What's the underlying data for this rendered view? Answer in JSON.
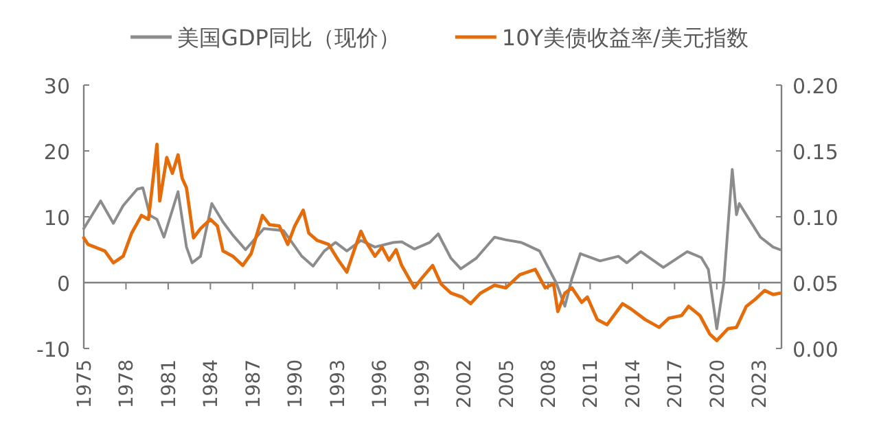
{
  "chart_data": {
    "type": "line",
    "legend": "top",
    "xlim": [
      1975,
      2024.6
    ],
    "xticks": [
      1975,
      1978,
      1981,
      1984,
      1987,
      1990,
      1993,
      1996,
      1999,
      2002,
      2005,
      2008,
      2011,
      2014,
      2017,
      2020,
      2023
    ],
    "ylim": [
      -10,
      30
    ],
    "yticks": [
      -10,
      0,
      10,
      20,
      30
    ],
    "y2lim": [
      0,
      0.2
    ],
    "y2ticks": [
      {
        "value": 0,
        "label": "0.00"
      },
      {
        "value": 0.05,
        "label": "0.05"
      },
      {
        "value": 0.1,
        "label": "0.10"
      },
      {
        "value": 0.15,
        "label": "0.15"
      },
      {
        "value": 0.2,
        "label": "0.20"
      }
    ],
    "series": [
      {
        "name": "美国GDP同比（现价）",
        "color": "#8c8c8c",
        "x": [
          1975.0,
          1976.2,
          1977.1,
          1977.8,
          1978.8,
          1979.2,
          1979.7,
          1980.2,
          1980.7,
          1981.7,
          1982.3,
          1982.7,
          1983.3,
          1984.1,
          1984.9,
          1985.6,
          1986.5,
          1987.8,
          1989.2,
          1990.5,
          1991.3,
          1992.1,
          1992.9,
          1993.7,
          1994.7,
          1995.7,
          1997.0,
          1997.6,
          1998.5,
          1999.6,
          2000.2,
          2001.1,
          2001.8,
          2002.9,
          2004.2,
          2005.0,
          2006.1,
          2007.4,
          2008.6,
          2009.2,
          2009.7,
          2010.3,
          2011.7,
          2013.0,
          2013.6,
          2014.6,
          2016.2,
          2017.9,
          2018.9,
          2019.4,
          2020.0,
          2020.5,
          2021.1,
          2021.4,
          2021.6,
          2022.1,
          2023.1,
          2024.0,
          2024.5
        ],
        "values": [
          8.2,
          12.4,
          9,
          11.7,
          14.2,
          14.4,
          10.2,
          9.6,
          6.9,
          13.8,
          5.4,
          3,
          4,
          12,
          9.2,
          7.2,
          5,
          8.2,
          7.9,
          4,
          2.5,
          4.8,
          6.1,
          4.8,
          6.4,
          5.4,
          6.1,
          6.2,
          5.1,
          6.1,
          7.4,
          3.7,
          2.1,
          3.7,
          6.9,
          6.5,
          6.1,
          4.8,
          -0.1,
          -3.6,
          0.6,
          4.4,
          3.3,
          4,
          3,
          4.7,
          2.3,
          4.7,
          3.8,
          2,
          -7,
          0,
          17.2,
          10.3,
          12,
          10.3,
          6.9,
          5.4,
          5
        ]
      },
      {
        "name": "10Y美债收益率/美元指数",
        "color": "#e46c0a",
        "axis": "y2",
        "x": [
          1975.0,
          1975.3,
          1976.5,
          1977.1,
          1977.8,
          1978.4,
          1979.1,
          1979.6,
          1979.9,
          1980.2,
          1980.4,
          1980.9,
          1981.3,
          1981.7,
          1982.0,
          1982.3,
          1982.8,
          1983.3,
          1984.0,
          1984.5,
          1984.9,
          1985.6,
          1986.3,
          1986.9,
          1987.7,
          1988.2,
          1988.9,
          1989.5,
          1990.0,
          1990.6,
          1991.0,
          1991.6,
          1992.4,
          1993.1,
          1993.7,
          1994.2,
          1994.7,
          1995.0,
          1995.7,
          1996.2,
          1996.7,
          1997.2,
          1997.6,
          1998.5,
          1999.0,
          1999.8,
          2000.4,
          2001.1,
          2001.9,
          2002.5,
          2003.2,
          2004.2,
          2005.0,
          2006.0,
          2007.1,
          2007.8,
          2008.4,
          2008.7,
          2009.2,
          2009.7,
          2010.4,
          2010.8,
          2011.5,
          2012.2,
          2013.3,
          2013.9,
          2014.9,
          2015.9,
          2016.6,
          2017.5,
          2018.0,
          2018.8,
          2019.5,
          2020.0,
          2020.8,
          2021.4,
          2022.1,
          2022.7,
          2023.4,
          2024.0,
          2024.5
        ],
        "values": [
          0.084,
          0.079,
          0.074,
          0.065,
          0.07,
          0.0875,
          0.101,
          0.098,
          0.126,
          0.155,
          0.112,
          0.145,
          0.133,
          0.147,
          0.129,
          0.122,
          0.084,
          0.091,
          0.098,
          0.093,
          0.074,
          0.07,
          0.063,
          0.072,
          0.101,
          0.094,
          0.093,
          0.079,
          0.093,
          0.105,
          0.0875,
          0.082,
          0.079,
          0.067,
          0.058,
          0.074,
          0.089,
          0.082,
          0.07,
          0.077,
          0.067,
          0.075,
          0.063,
          0.046,
          0.053,
          0.063,
          0.049,
          0.042,
          0.039,
          0.034,
          0.042,
          0.048,
          0.046,
          0.056,
          0.06,
          0.046,
          0.049,
          0.028,
          0.042,
          0.046,
          0.035,
          0.039,
          0.022,
          0.018,
          0.034,
          0.03,
          0.022,
          0.016,
          0.023,
          0.025,
          0.032,
          0.025,
          0.011,
          0.006,
          0.015,
          0.016,
          0.032,
          0.037,
          0.044,
          0.041,
          0.042
        ]
      }
    ]
  }
}
